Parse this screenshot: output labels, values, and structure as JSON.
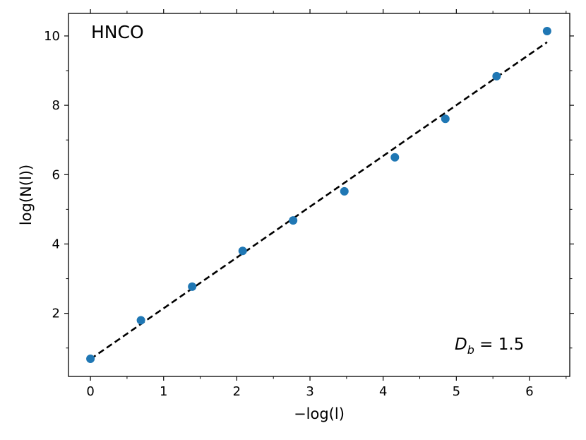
{
  "chart_data": {
    "type": "scatter",
    "title": "HNCO",
    "xlabel": "−log(l)",
    "ylabel": "log(N(l))",
    "xlim": [
      -0.3,
      6.55
    ],
    "ylim": [
      0.18,
      10.65
    ],
    "x_ticks": [
      0,
      1,
      2,
      3,
      4,
      5,
      6
    ],
    "y_ticks": [
      2,
      4,
      6,
      8,
      10
    ],
    "grid": false,
    "series": [
      {
        "kind": "scatter",
        "color": "#1f77b4",
        "x": [
          0.0,
          0.69,
          1.39,
          2.08,
          2.77,
          3.47,
          4.16,
          4.85,
          5.55,
          6.24
        ],
        "y": [
          0.69,
          1.8,
          2.77,
          3.8,
          4.68,
          5.52,
          6.5,
          7.61,
          8.84,
          10.14
        ]
      },
      {
        "kind": "fit-line",
        "color": "#000000",
        "style": "dashed",
        "x": [
          0.0,
          6.24
        ],
        "y": [
          0.68,
          9.82
        ]
      }
    ],
    "annotation": {
      "symbol": "D",
      "subscript": "b",
      "text": " =  1.5"
    }
  }
}
